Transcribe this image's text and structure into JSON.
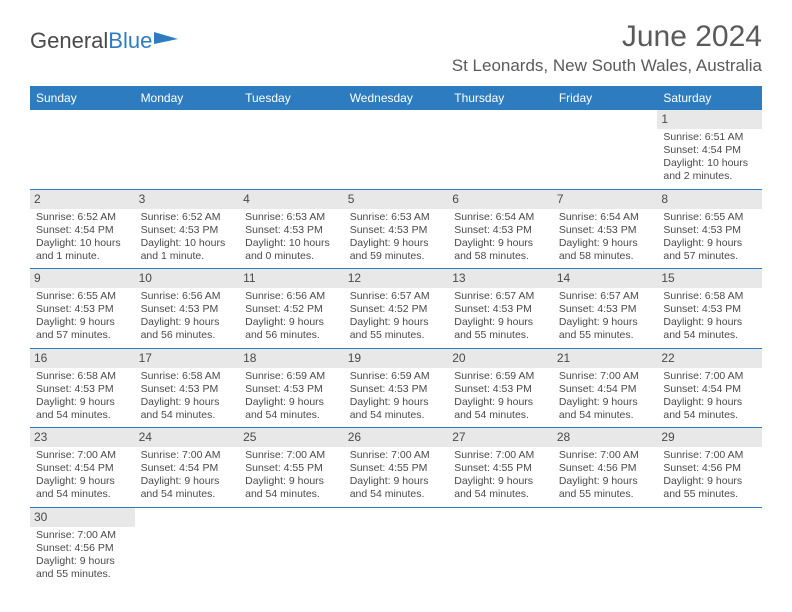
{
  "logo": {
    "text1": "General",
    "text2": "Blue"
  },
  "title": "June 2024",
  "location": "St Leonards, New South Wales, Australia",
  "header_bg": "#2e7cc0",
  "days_of_week": [
    "Sunday",
    "Monday",
    "Tuesday",
    "Wednesday",
    "Thursday",
    "Friday",
    "Saturday"
  ],
  "weeks": [
    [
      null,
      null,
      null,
      null,
      null,
      null,
      {
        "n": "1",
        "sr": "Sunrise: 6:51 AM",
        "ss": "Sunset: 4:54 PM",
        "dl": "Daylight: 10 hours and 2 minutes."
      }
    ],
    [
      {
        "n": "2",
        "sr": "Sunrise: 6:52 AM",
        "ss": "Sunset: 4:54 PM",
        "dl": "Daylight: 10 hours and 1 minute."
      },
      {
        "n": "3",
        "sr": "Sunrise: 6:52 AM",
        "ss": "Sunset: 4:53 PM",
        "dl": "Daylight: 10 hours and 1 minute."
      },
      {
        "n": "4",
        "sr": "Sunrise: 6:53 AM",
        "ss": "Sunset: 4:53 PM",
        "dl": "Daylight: 10 hours and 0 minutes."
      },
      {
        "n": "5",
        "sr": "Sunrise: 6:53 AM",
        "ss": "Sunset: 4:53 PM",
        "dl": "Daylight: 9 hours and 59 minutes."
      },
      {
        "n": "6",
        "sr": "Sunrise: 6:54 AM",
        "ss": "Sunset: 4:53 PM",
        "dl": "Daylight: 9 hours and 58 minutes."
      },
      {
        "n": "7",
        "sr": "Sunrise: 6:54 AM",
        "ss": "Sunset: 4:53 PM",
        "dl": "Daylight: 9 hours and 58 minutes."
      },
      {
        "n": "8",
        "sr": "Sunrise: 6:55 AM",
        "ss": "Sunset: 4:53 PM",
        "dl": "Daylight: 9 hours and 57 minutes."
      }
    ],
    [
      {
        "n": "9",
        "sr": "Sunrise: 6:55 AM",
        "ss": "Sunset: 4:53 PM",
        "dl": "Daylight: 9 hours and 57 minutes."
      },
      {
        "n": "10",
        "sr": "Sunrise: 6:56 AM",
        "ss": "Sunset: 4:53 PM",
        "dl": "Daylight: 9 hours and 56 minutes."
      },
      {
        "n": "11",
        "sr": "Sunrise: 6:56 AM",
        "ss": "Sunset: 4:52 PM",
        "dl": "Daylight: 9 hours and 56 minutes."
      },
      {
        "n": "12",
        "sr": "Sunrise: 6:57 AM",
        "ss": "Sunset: 4:52 PM",
        "dl": "Daylight: 9 hours and 55 minutes."
      },
      {
        "n": "13",
        "sr": "Sunrise: 6:57 AM",
        "ss": "Sunset: 4:53 PM",
        "dl": "Daylight: 9 hours and 55 minutes."
      },
      {
        "n": "14",
        "sr": "Sunrise: 6:57 AM",
        "ss": "Sunset: 4:53 PM",
        "dl": "Daylight: 9 hours and 55 minutes."
      },
      {
        "n": "15",
        "sr": "Sunrise: 6:58 AM",
        "ss": "Sunset: 4:53 PM",
        "dl": "Daylight: 9 hours and 54 minutes."
      }
    ],
    [
      {
        "n": "16",
        "sr": "Sunrise: 6:58 AM",
        "ss": "Sunset: 4:53 PM",
        "dl": "Daylight: 9 hours and 54 minutes."
      },
      {
        "n": "17",
        "sr": "Sunrise: 6:58 AM",
        "ss": "Sunset: 4:53 PM",
        "dl": "Daylight: 9 hours and 54 minutes."
      },
      {
        "n": "18",
        "sr": "Sunrise: 6:59 AM",
        "ss": "Sunset: 4:53 PM",
        "dl": "Daylight: 9 hours and 54 minutes."
      },
      {
        "n": "19",
        "sr": "Sunrise: 6:59 AM",
        "ss": "Sunset: 4:53 PM",
        "dl": "Daylight: 9 hours and 54 minutes."
      },
      {
        "n": "20",
        "sr": "Sunrise: 6:59 AM",
        "ss": "Sunset: 4:53 PM",
        "dl": "Daylight: 9 hours and 54 minutes."
      },
      {
        "n": "21",
        "sr": "Sunrise: 7:00 AM",
        "ss": "Sunset: 4:54 PM",
        "dl": "Daylight: 9 hours and 54 minutes."
      },
      {
        "n": "22",
        "sr": "Sunrise: 7:00 AM",
        "ss": "Sunset: 4:54 PM",
        "dl": "Daylight: 9 hours and 54 minutes."
      }
    ],
    [
      {
        "n": "23",
        "sr": "Sunrise: 7:00 AM",
        "ss": "Sunset: 4:54 PM",
        "dl": "Daylight: 9 hours and 54 minutes."
      },
      {
        "n": "24",
        "sr": "Sunrise: 7:00 AM",
        "ss": "Sunset: 4:54 PM",
        "dl": "Daylight: 9 hours and 54 minutes."
      },
      {
        "n": "25",
        "sr": "Sunrise: 7:00 AM",
        "ss": "Sunset: 4:55 PM",
        "dl": "Daylight: 9 hours and 54 minutes."
      },
      {
        "n": "26",
        "sr": "Sunrise: 7:00 AM",
        "ss": "Sunset: 4:55 PM",
        "dl": "Daylight: 9 hours and 54 minutes."
      },
      {
        "n": "27",
        "sr": "Sunrise: 7:00 AM",
        "ss": "Sunset: 4:55 PM",
        "dl": "Daylight: 9 hours and 54 minutes."
      },
      {
        "n": "28",
        "sr": "Sunrise: 7:00 AM",
        "ss": "Sunset: 4:56 PM",
        "dl": "Daylight: 9 hours and 55 minutes."
      },
      {
        "n": "29",
        "sr": "Sunrise: 7:00 AM",
        "ss": "Sunset: 4:56 PM",
        "dl": "Daylight: 9 hours and 55 minutes."
      }
    ],
    [
      {
        "n": "30",
        "sr": "Sunrise: 7:00 AM",
        "ss": "Sunset: 4:56 PM",
        "dl": "Daylight: 9 hours and 55 minutes."
      },
      null,
      null,
      null,
      null,
      null,
      null
    ]
  ]
}
